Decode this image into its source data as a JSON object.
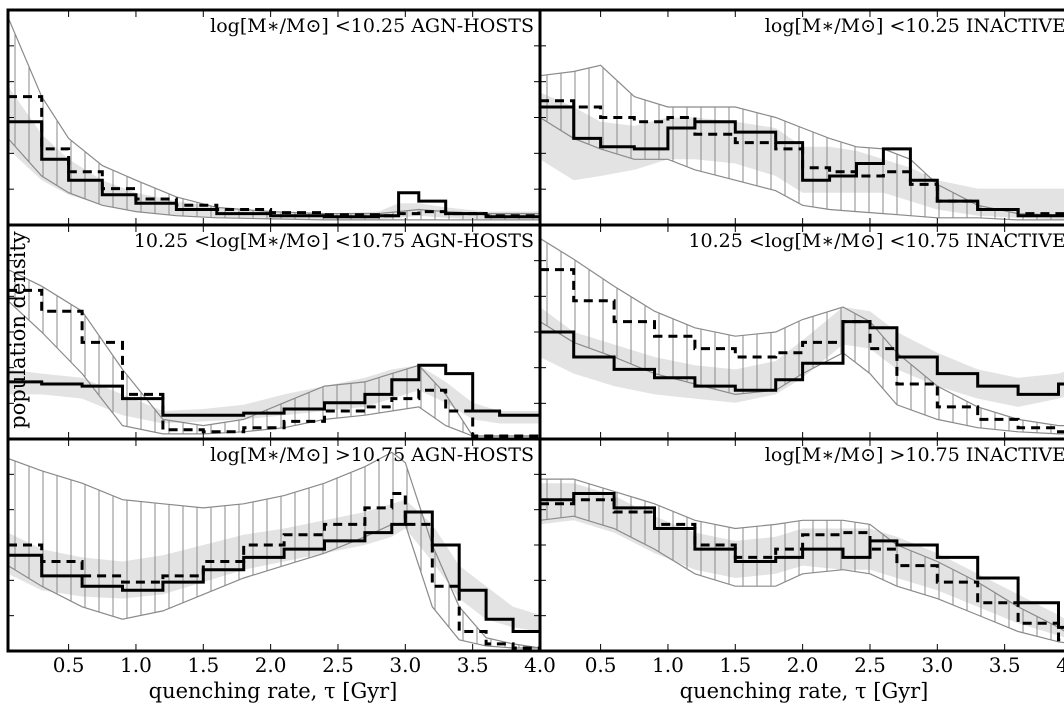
{
  "figure": {
    "ylabel": "population density",
    "xlabel": "quenching rate, τ [Gyr]"
  },
  "chart_data": {
    "type": "step-histogram-grid",
    "xlim": [
      0.05,
      4.0
    ],
    "x_ticks": [
      "0.5",
      "1.0",
      "1.5",
      "2.0",
      "2.5",
      "3.0",
      "3.5",
      "4.0"
    ],
    "x_tick_values": [
      0.5,
      1.0,
      1.5,
      2.0,
      2.5,
      3.0,
      3.5,
      4.0
    ],
    "y_ticks_labeled": false,
    "grid": false,
    "series_styles": {
      "solid": "thick solid black step line",
      "dashed": "thick dashed black step line",
      "grey_band": "light grey shaded band",
      "hatched_band": "vertical-hatched band with thin grey outline"
    },
    "panels": [
      {
        "id": "low-agn",
        "row": 0,
        "col": 0,
        "label": "log[M∗/M⊙] <10.25 AGN-HOSTS",
        "ylim": [
          0,
          1
        ],
        "x": [
          0.05,
          0.3,
          0.5,
          0.75,
          1.0,
          1.3,
          1.6,
          2.0,
          2.4,
          2.8,
          2.95,
          3.1,
          3.3,
          3.6,
          4.0
        ],
        "solid": [
          0.48,
          0.3,
          0.2,
          0.13,
          0.09,
          0.06,
          0.04,
          0.03,
          0.025,
          0.03,
          0.14,
          0.1,
          0.04,
          0.025,
          0.03
        ],
        "dashed": [
          0.6,
          0.35,
          0.24,
          0.16,
          0.11,
          0.08,
          0.06,
          0.045,
          0.035,
          0.03,
          0.04,
          0.05,
          0.04,
          0.03,
          0.03
        ],
        "band": {
          "lo": [
            0.35,
            0.2,
            0.13,
            0.08,
            0.05,
            0.03,
            0.02,
            0.015,
            0.01,
            0.01,
            0.02,
            0.03,
            0.02,
            0.01,
            0.01
          ],
          "hi": [
            0.65,
            0.42,
            0.3,
            0.2,
            0.14,
            0.1,
            0.07,
            0.05,
            0.04,
            0.05,
            0.09,
            0.09,
            0.07,
            0.05,
            0.05
          ]
        },
        "hatch": {
          "lo": [
            0.4,
            0.22,
            0.14,
            0.08,
            0.05,
            0.03,
            0.02,
            0.015,
            0.01,
            0.01,
            0.01,
            0.01,
            0.01,
            0.01,
            0.01
          ],
          "hi": [
            0.98,
            0.6,
            0.4,
            0.27,
            0.2,
            0.12,
            0.07,
            0.05,
            0.04,
            0.04,
            0.05,
            0.06,
            0.05,
            0.04,
            0.04
          ]
        }
      },
      {
        "id": "low-inactive",
        "row": 0,
        "col": 1,
        "label": "log[M∗/M⊙] <10.25 INACTIVE",
        "ylim": [
          0,
          1
        ],
        "x": [
          0.05,
          0.3,
          0.5,
          0.75,
          1.0,
          1.2,
          1.5,
          1.8,
          2.0,
          2.2,
          2.4,
          2.6,
          2.8,
          3.0,
          3.3,
          3.6,
          4.0
        ],
        "solid": [
          0.55,
          0.4,
          0.36,
          0.35,
          0.45,
          0.48,
          0.43,
          0.38,
          0.2,
          0.22,
          0.28,
          0.35,
          0.2,
          0.1,
          0.06,
          0.03,
          0.02
        ],
        "dashed": [
          0.58,
          0.55,
          0.5,
          0.48,
          0.5,
          0.42,
          0.38,
          0.35,
          0.26,
          0.24,
          0.22,
          0.24,
          0.18,
          0.1,
          0.06,
          0.04,
          0.03
        ],
        "band": {
          "lo": [
            0.3,
            0.2,
            0.22,
            0.25,
            0.3,
            0.3,
            0.28,
            0.22,
            0.14,
            0.14,
            0.14,
            0.14,
            0.1,
            0.06,
            0.03,
            0.02,
            0.01
          ],
          "hi": [
            0.62,
            0.55,
            0.48,
            0.46,
            0.5,
            0.5,
            0.48,
            0.45,
            0.36,
            0.36,
            0.34,
            0.3,
            0.26,
            0.2,
            0.16,
            0.16,
            0.16
          ]
        },
        "hatch": {
          "lo": [
            0.5,
            0.4,
            0.35,
            0.3,
            0.3,
            0.25,
            0.2,
            0.15,
            0.08,
            0.06,
            0.05,
            0.04,
            0.03,
            0.02,
            0.02,
            0.01,
            0.01
          ],
          "hi": [
            0.7,
            0.72,
            0.75,
            0.6,
            0.55,
            0.55,
            0.55,
            0.5,
            0.45,
            0.4,
            0.36,
            0.35,
            0.3,
            0.18,
            0.08,
            0.04,
            0.03
          ]
        }
      },
      {
        "id": "mid-agn",
        "row": 1,
        "col": 0,
        "label": "10.25 <log[M∗/M⊙] <10.75 AGN-HOSTS",
        "ylim": [
          0,
          1
        ],
        "x": [
          0.05,
          0.3,
          0.6,
          0.9,
          1.2,
          1.5,
          1.8,
          2.1,
          2.4,
          2.7,
          2.9,
          3.1,
          3.3,
          3.5,
          3.7,
          4.0
        ],
        "solid": [
          0.26,
          0.25,
          0.24,
          0.18,
          0.1,
          0.1,
          0.11,
          0.13,
          0.16,
          0.2,
          0.27,
          0.34,
          0.3,
          0.12,
          0.1,
          0.1
        ],
        "dashed": [
          0.7,
          0.6,
          0.45,
          0.2,
          0.03,
          0.02,
          0.04,
          0.07,
          0.12,
          0.14,
          0.18,
          0.22,
          0.12,
          0.0,
          0.0,
          0.0
        ],
        "band": {
          "lo": [
            0.2,
            0.2,
            0.18,
            0.1,
            0.06,
            0.07,
            0.08,
            0.1,
            0.12,
            0.14,
            0.18,
            0.22,
            0.16,
            0.08,
            0.06,
            0.06
          ],
          "hi": [
            0.32,
            0.3,
            0.28,
            0.2,
            0.12,
            0.13,
            0.15,
            0.2,
            0.24,
            0.28,
            0.32,
            0.34,
            0.26,
            0.16,
            0.12,
            0.12
          ]
        },
        "hatch": {
          "lo": [
            0.65,
            0.5,
            0.3,
            0.05,
            0.01,
            0.01,
            0.02,
            0.04,
            0.08,
            0.1,
            0.12,
            0.14,
            0.05,
            0.0,
            0.0,
            0.0
          ],
          "hi": [
            0.8,
            0.72,
            0.6,
            0.32,
            0.08,
            0.05,
            0.08,
            0.16,
            0.24,
            0.26,
            0.3,
            0.34,
            0.2,
            0.0,
            0.0,
            0.0
          ]
        }
      },
      {
        "id": "mid-inactive",
        "row": 1,
        "col": 1,
        "label": "10.25 <log[M∗/M⊙] <10.75 INACTIVE",
        "ylim": [
          0,
          1
        ],
        "x": [
          0.05,
          0.3,
          0.6,
          0.9,
          1.2,
          1.5,
          1.8,
          2.0,
          2.3,
          2.5,
          2.7,
          3.0,
          3.3,
          3.6,
          3.9,
          4.0
        ],
        "solid": [
          0.5,
          0.38,
          0.32,
          0.28,
          0.24,
          0.22,
          0.27,
          0.35,
          0.55,
          0.52,
          0.38,
          0.3,
          0.24,
          0.2,
          0.25,
          0.45
        ],
        "dashed": [
          0.8,
          0.65,
          0.55,
          0.48,
          0.42,
          0.38,
          0.4,
          0.45,
          0.55,
          0.42,
          0.25,
          0.14,
          0.08,
          0.04,
          0.02,
          0.02
        ],
        "band": {
          "lo": [
            0.38,
            0.3,
            0.24,
            0.2,
            0.18,
            0.16,
            0.2,
            0.28,
            0.44,
            0.42,
            0.32,
            0.24,
            0.18,
            0.14,
            0.18,
            0.2
          ],
          "hi": [
            0.62,
            0.5,
            0.44,
            0.38,
            0.34,
            0.32,
            0.36,
            0.46,
            0.62,
            0.6,
            0.5,
            0.4,
            0.32,
            0.28,
            0.3,
            0.32
          ]
        },
        "hatch": {
          "lo": [
            0.55,
            0.45,
            0.38,
            0.3,
            0.25,
            0.2,
            0.22,
            0.3,
            0.4,
            0.3,
            0.15,
            0.08,
            0.04,
            0.02,
            0.01,
            0.01
          ],
          "hi": [
            0.95,
            0.85,
            0.72,
            0.6,
            0.52,
            0.48,
            0.5,
            0.56,
            0.62,
            0.55,
            0.4,
            0.24,
            0.14,
            0.08,
            0.05,
            0.05
          ]
        }
      },
      {
        "id": "high-agn",
        "row": 2,
        "col": 0,
        "label": "log[M∗/M⊙] >10.75 AGN-HOSTS",
        "ylim": [
          0,
          1
        ],
        "x": [
          0.05,
          0.3,
          0.6,
          0.9,
          1.2,
          1.5,
          1.8,
          2.1,
          2.4,
          2.7,
          2.9,
          3.0,
          3.2,
          3.4,
          3.6,
          3.8,
          4.0
        ],
        "solid": [
          0.45,
          0.35,
          0.3,
          0.28,
          0.32,
          0.38,
          0.44,
          0.48,
          0.52,
          0.56,
          0.6,
          0.66,
          0.5,
          0.28,
          0.14,
          0.08,
          0.05
        ],
        "dashed": [
          0.5,
          0.42,
          0.35,
          0.32,
          0.35,
          0.42,
          0.5,
          0.55,
          0.6,
          0.68,
          0.75,
          0.6,
          0.3,
          0.08,
          0.02,
          0.0,
          0.0
        ],
        "band": {
          "lo": [
            0.36,
            0.28,
            0.25,
            0.24,
            0.26,
            0.32,
            0.38,
            0.42,
            0.46,
            0.5,
            0.54,
            0.58,
            0.42,
            0.24,
            0.14,
            0.1,
            0.08
          ],
          "hi": [
            0.56,
            0.48,
            0.44,
            0.42,
            0.45,
            0.5,
            0.55,
            0.58,
            0.62,
            0.66,
            0.7,
            0.72,
            0.6,
            0.4,
            0.3,
            0.2,
            0.16
          ]
        },
        "hatch": {
          "lo": [
            0.4,
            0.3,
            0.2,
            0.14,
            0.18,
            0.26,
            0.34,
            0.4,
            0.46,
            0.54,
            0.6,
            0.6,
            0.2,
            0.04,
            0.01,
            0.0,
            0.0
          ],
          "hi": [
            0.92,
            0.86,
            0.8,
            0.72,
            0.7,
            0.68,
            0.7,
            0.74,
            0.8,
            0.88,
            0.95,
            0.9,
            0.5,
            0.2,
            0.05,
            0.02,
            0.0
          ]
        }
      },
      {
        "id": "high-inactive",
        "row": 2,
        "col": 1,
        "label": "log[M∗/M⊙] >10.75 INACTIVE",
        "ylim": [
          0,
          1
        ],
        "x": [
          0.05,
          0.3,
          0.6,
          0.9,
          1.2,
          1.5,
          1.8,
          2.0,
          2.3,
          2.5,
          2.7,
          3.0,
          3.3,
          3.6,
          3.9,
          4.0
        ],
        "solid": [
          0.72,
          0.75,
          0.68,
          0.58,
          0.48,
          0.42,
          0.44,
          0.48,
          0.44,
          0.52,
          0.5,
          0.44,
          0.34,
          0.22,
          0.1,
          0.05
        ],
        "dashed": [
          0.7,
          0.72,
          0.66,
          0.6,
          0.5,
          0.44,
          0.48,
          0.55,
          0.56,
          0.48,
          0.4,
          0.32,
          0.22,
          0.12,
          0.04,
          0.02
        ],
        "band": {
          "lo": [
            0.6,
            0.62,
            0.56,
            0.46,
            0.38,
            0.34,
            0.36,
            0.4,
            0.38,
            0.38,
            0.34,
            0.28,
            0.2,
            0.12,
            0.06,
            0.04
          ],
          "hi": [
            0.8,
            0.8,
            0.74,
            0.64,
            0.56,
            0.52,
            0.54,
            0.58,
            0.58,
            0.58,
            0.54,
            0.46,
            0.36,
            0.26,
            0.16,
            0.12
          ]
        },
        "hatch": {
          "lo": [
            0.62,
            0.64,
            0.58,
            0.48,
            0.36,
            0.3,
            0.3,
            0.36,
            0.38,
            0.36,
            0.3,
            0.24,
            0.16,
            0.08,
            0.03,
            0.02
          ],
          "hi": [
            0.82,
            0.82,
            0.76,
            0.7,
            0.62,
            0.58,
            0.6,
            0.62,
            0.62,
            0.6,
            0.5,
            0.42,
            0.32,
            0.2,
            0.1,
            0.06
          ]
        }
      }
    ]
  }
}
